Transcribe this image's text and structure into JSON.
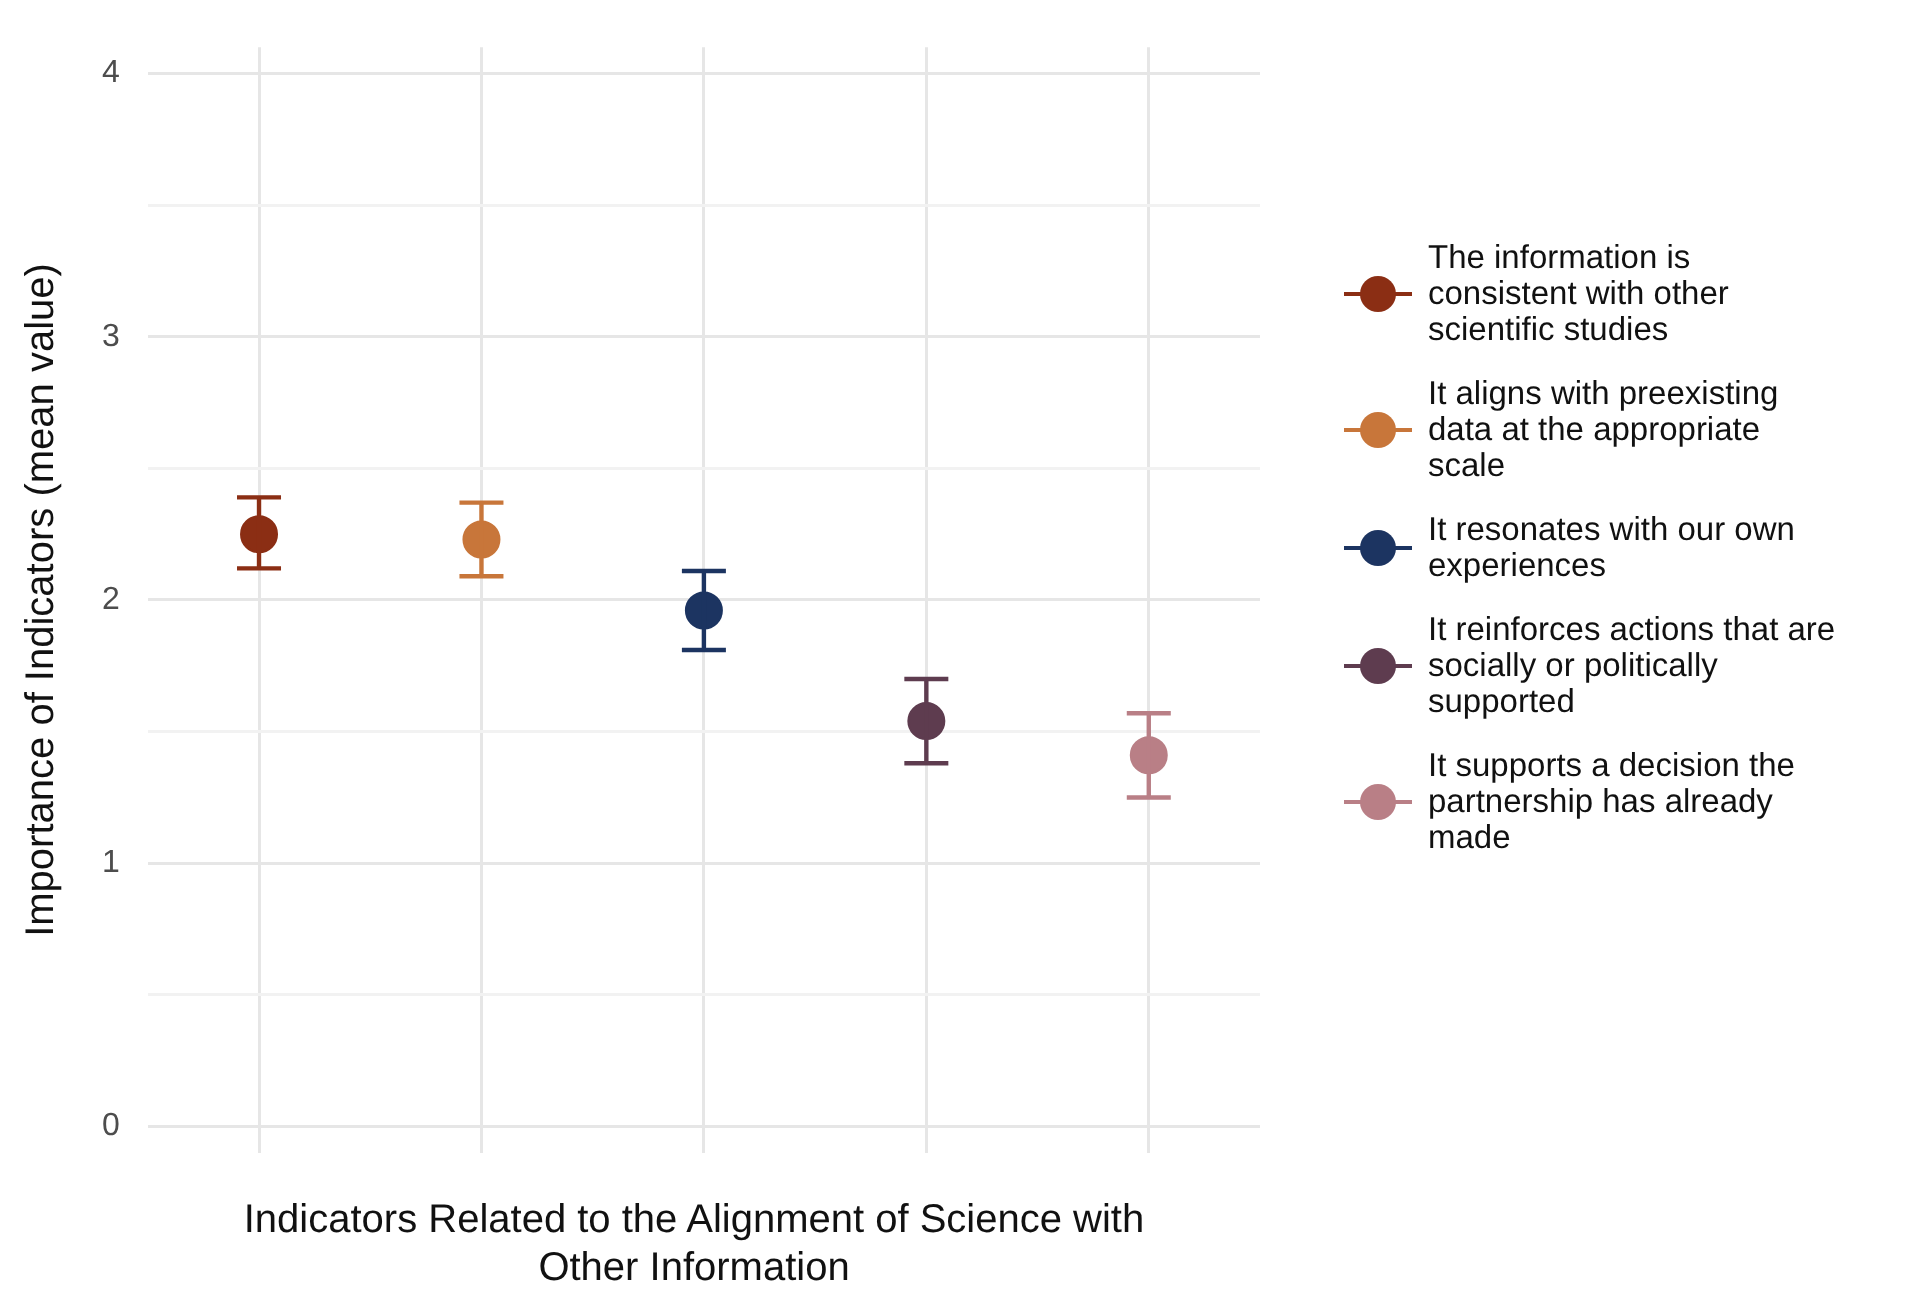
{
  "chart_data": {
    "type": "scatter",
    "xlabel": "Indicators Related to the Alignment of Science with Other Information",
    "ylabel": "Importance of Indicators (mean value)",
    "categories": [
      null,
      null,
      null,
      null,
      null
    ],
    "series": [
      {
        "name": "The information is consistent with other scientific studies",
        "color": "#8b2e14",
        "values": [
          2.25,
          null,
          null,
          null,
          null
        ],
        "errors": [
          [
            2.12,
            2.39
          ],
          null,
          null,
          null,
          null
        ]
      },
      {
        "name": "It aligns with preexisting data at the appropriate scale",
        "color": "#c8763a",
        "values": [
          null,
          2.23,
          null,
          null,
          null
        ],
        "errors": [
          null,
          [
            2.09,
            2.37
          ],
          null,
          null,
          null
        ]
      },
      {
        "name": "It resonates with our own experiences",
        "color": "#1c3461",
        "values": [
          null,
          null,
          1.96,
          null,
          null
        ],
        "errors": [
          null,
          null,
          [
            1.81,
            2.11
          ],
          null,
          null
        ]
      },
      {
        "name": "It reinforces actions that are socially or politically supported",
        "color": "#5e3c4f",
        "values": [
          null,
          null,
          null,
          1.54,
          null
        ],
        "errors": [
          null,
          null,
          null,
          [
            1.38,
            1.7
          ],
          null
        ]
      },
      {
        "name": "It supports a decision the partnership has already made",
        "color": "#b97f86",
        "values": [
          null,
          null,
          null,
          null,
          1.41
        ],
        "errors": [
          null,
          null,
          null,
          null,
          [
            1.25,
            1.57
          ]
        ]
      }
    ],
    "ylim": [
      -0.1,
      4.1
    ],
    "yticks": [
      0,
      {
        "value": 0.5,
        "label": null
      },
      1,
      {
        "value": 1.5,
        "label": null
      },
      2,
      {
        "value": 2.5,
        "label": null
      },
      3,
      {
        "value": 3.5,
        "label": null
      },
      4
    ],
    "grid": true,
    "legend": "right",
    "marker": "circle"
  }
}
